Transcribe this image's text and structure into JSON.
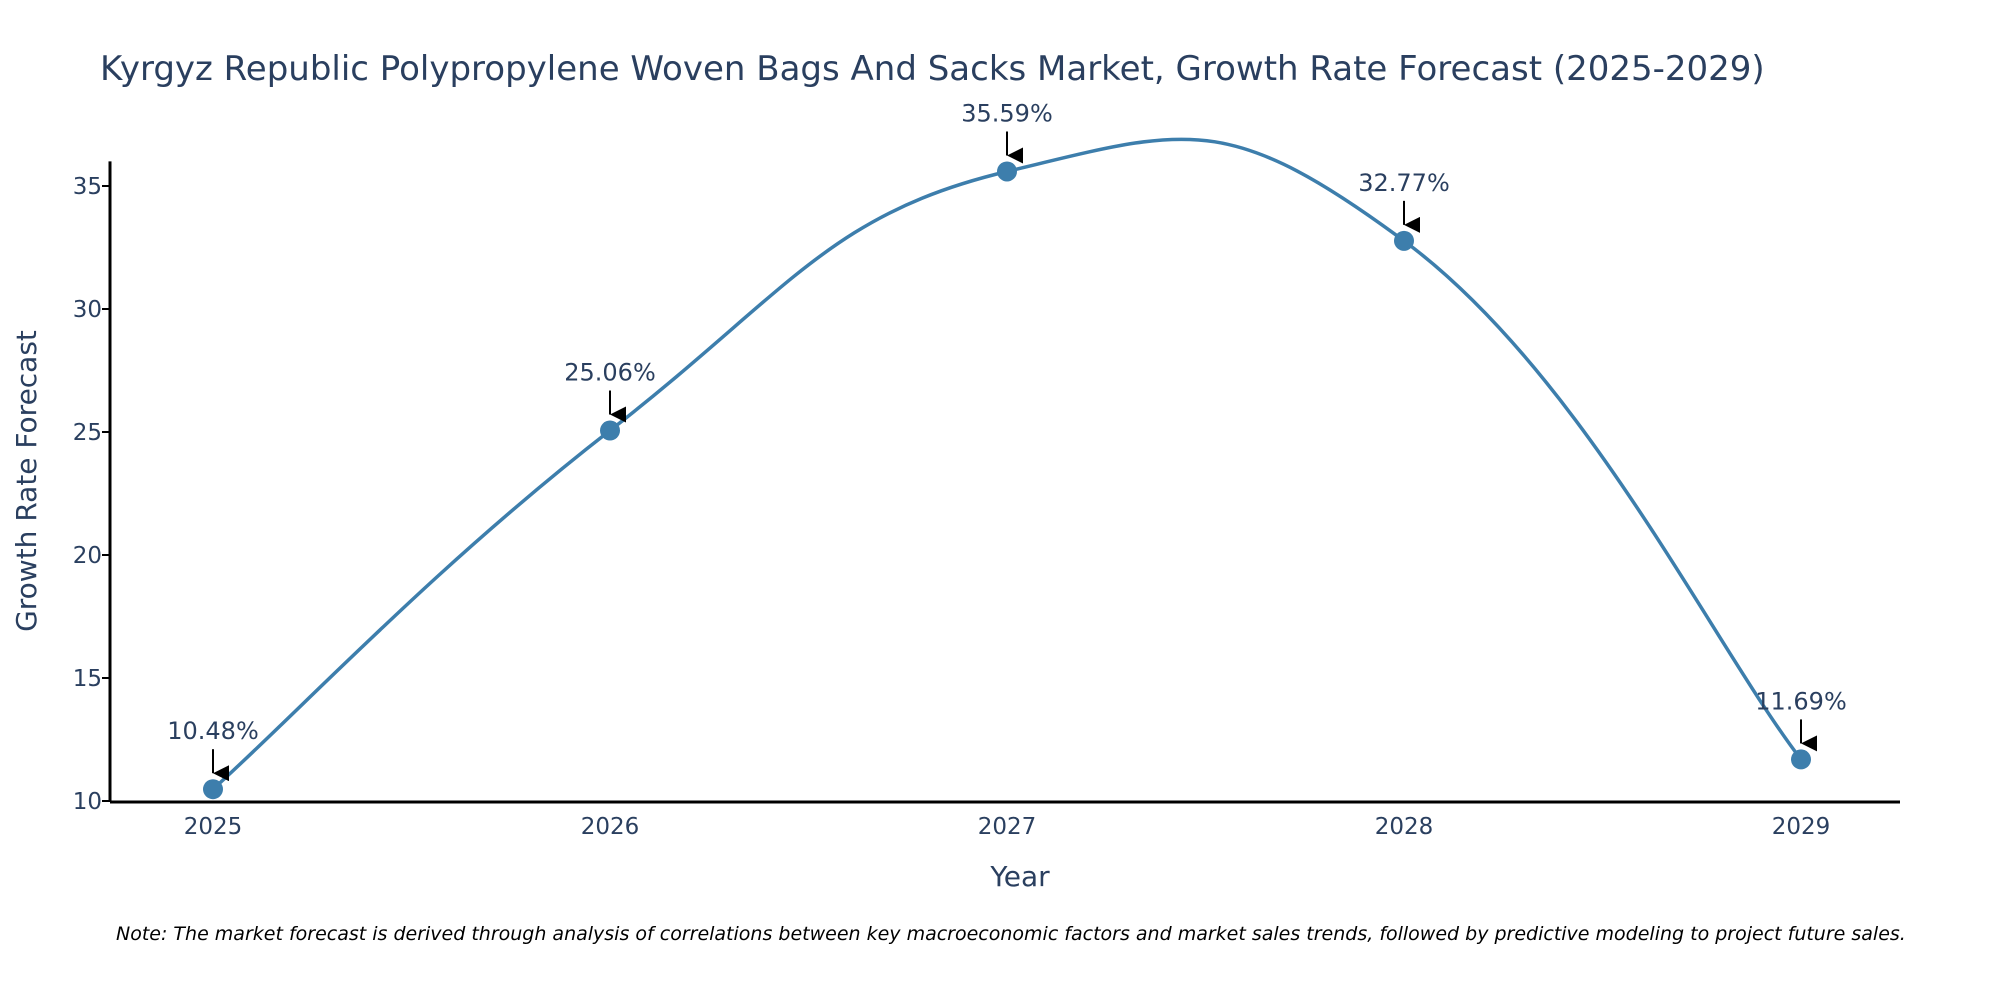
{
  "colors": {
    "series": "#3d7eac",
    "axis": "#000000",
    "text": "#2a3f5f",
    "arrow": "#000000"
  },
  "chart_data": {
    "type": "line",
    "title": "Kyrgyz Republic Polypropylene Woven Bags And Sacks Market, Growth Rate Forecast (2025-2029)",
    "xlabel": "Year",
    "ylabel": "Growth Rate Forecast",
    "x": [
      "2025",
      "2026",
      "2027",
      "2028",
      "2029"
    ],
    "values": [
      10.48,
      25.06,
      35.59,
      32.77,
      11.69
    ],
    "data_labels": [
      "10.48%",
      "25.06%",
      "35.59%",
      "32.77%",
      "11.69%"
    ],
    "yticks": [
      10,
      15,
      20,
      25,
      30,
      35
    ],
    "ylim": [
      10,
      36
    ],
    "grid": false,
    "line_shape": "spline",
    "markers": true,
    "annotation_arrows": true
  },
  "note": "Note: The market forecast is derived through analysis of correlations between key macroeconomic factors and market sales trends, followed by predictive modeling to project future sales."
}
